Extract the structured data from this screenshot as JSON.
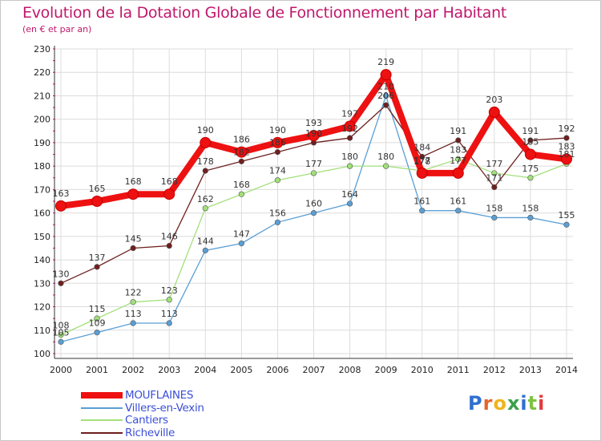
{
  "header": {
    "title": "Evolution de la Dotation Globale de Fonctionnement par Habitant",
    "subtitle": "(en € et par an)"
  },
  "brand": {
    "logo": "Proxiti"
  },
  "chart_data": {
    "type": "line",
    "title": "Evolution de la Dotation Globale de Fonctionnement par Habitant",
    "subtitle": "(en € et par an)",
    "xlabel": "",
    "ylabel": "",
    "ylim": [
      100,
      230
    ],
    "yticks": [
      100,
      110,
      120,
      130,
      140,
      150,
      160,
      170,
      180,
      190,
      200,
      210,
      220,
      230
    ],
    "grid": true,
    "legend_position": "bottom-left",
    "categories": [
      "2000",
      "2001",
      "2002",
      "2003",
      "2004",
      "2005",
      "2006",
      "2007",
      "2008",
      "2009",
      "2010",
      "2011",
      "2012",
      "2013",
      "2014"
    ],
    "series": [
      {
        "name": "MOUFLAINES",
        "color": "#ee1111",
        "bold": true,
        "values": [
          163,
          165,
          168,
          168,
          190,
          186,
          190,
          193,
          197,
          219,
          177,
          177,
          203,
          185,
          183
        ]
      },
      {
        "name": "Villers-en-Vexin",
        "color": "#5b9fd4",
        "values": [
          105,
          109,
          113,
          113,
          144,
          147,
          156,
          160,
          164,
          210,
          161,
          161,
          158,
          158,
          155
        ]
      },
      {
        "name": "Cantiers",
        "color": "#a2e07a",
        "values": [
          108,
          115,
          122,
          123,
          162,
          168,
          174,
          177,
          180,
          180,
          178,
          183,
          177,
          175,
          181
        ]
      },
      {
        "name": "Richeville",
        "color": "#6e1f1f",
        "values": [
          130,
          137,
          145,
          146,
          178,
          182,
          186,
          190,
          192,
          206,
          184,
          191,
          171,
          191,
          192
        ]
      }
    ]
  }
}
